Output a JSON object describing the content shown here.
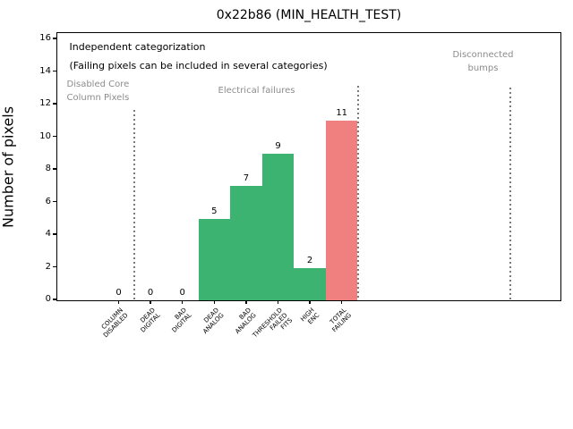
{
  "chart_data": {
    "type": "bar",
    "title": "0x22b86 (MIN_HEALTH_TEST)",
    "ylabel": "Number of pixels",
    "xlabel": "",
    "ylim": [
      0,
      16.5
    ],
    "yticks": [
      0,
      2,
      4,
      6,
      8,
      10,
      12,
      14,
      16
    ],
    "grid": false,
    "legend": "none",
    "categories": [
      "COLUMN\nDISABLED",
      "DEAD\nDIGITAL",
      "BAD\nDIGITAL",
      "DEAD\nANALOG",
      "BAD\nANALOG",
      "THRESHOLD\nFAILED\nFITS",
      "HIGH\nENC",
      "TOTAL\nFAILING"
    ],
    "values": [
      0,
      0,
      0,
      5,
      7,
      9,
      2,
      11
    ],
    "bar_colors": [
      "#3cb371",
      "#3cb371",
      "#3cb371",
      "#3cb371",
      "#3cb371",
      "#3cb371",
      "#3cb371",
      "#f08080"
    ],
    "bar_value_labels": [
      "0",
      "0",
      "0",
      "5",
      "7",
      "9",
      "2",
      "11"
    ],
    "annotations": {
      "heading": "Independent categorization",
      "subheading": "(Failing pixels can be included in several categories)",
      "groups": [
        {
          "name": "disabled-core-column-pixels",
          "label": "Disabled Core\nColumn Pixels"
        },
        {
          "name": "electrical-failures",
          "label": "Electrical failures"
        },
        {
          "name": "disconnected-bumps",
          "label": "Disconnected\nbumps"
        }
      ]
    },
    "separators_at_category": [
      0.5,
      7.5,
      12.3
    ],
    "colors": {
      "pass_bar": "#3cb371",
      "fail_bar": "#f08080",
      "group_text": "#8c8c8c",
      "separator": "#7a7a7a"
    }
  }
}
